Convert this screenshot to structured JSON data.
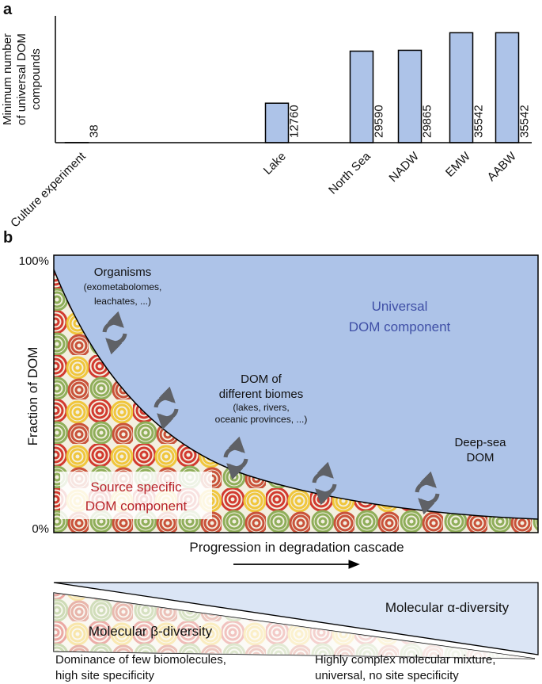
{
  "chart_data": {
    "type": "bar",
    "panel_label": "a",
    "y_label": [
      "Minimum number",
      "of universal DOM",
      "compounds"
    ],
    "categories": [
      "Culture experiment",
      "Lake",
      "North Sea",
      "NADW",
      "EMW",
      "AABW"
    ],
    "values": [
      38,
      12760,
      29590,
      29865,
      35542,
      35542
    ],
    "color": "#adc3e8",
    "ylim": [
      0,
      41000
    ]
  },
  "panel_b": {
    "label": "b",
    "y_label": "Fraction of DOM",
    "y_top": "100%",
    "y_bottom": "0%",
    "organisms": [
      "Organisms",
      "(exometabolomes,",
      "leachates, ...)"
    ],
    "universal": [
      "Universal",
      "DOM component"
    ],
    "biomes": [
      "DOM of",
      "different biomes",
      "(lakes, rivers,",
      "oceanic provinces, ...)"
    ],
    "deep_sea": [
      "Deep-sea",
      "DOM"
    ],
    "source_specific": [
      "Source specific",
      "DOM component"
    ],
    "x_label": "Progression in degradation cascade",
    "alpha": "Molecular α-diversity",
    "beta": "Molecular β-diversity",
    "left_note": [
      "Dominance of few biomolecules,",
      "high site specificity"
    ],
    "right_note": [
      "Highly complex molecular mixture,",
      "universal, no site specificity"
    ]
  }
}
